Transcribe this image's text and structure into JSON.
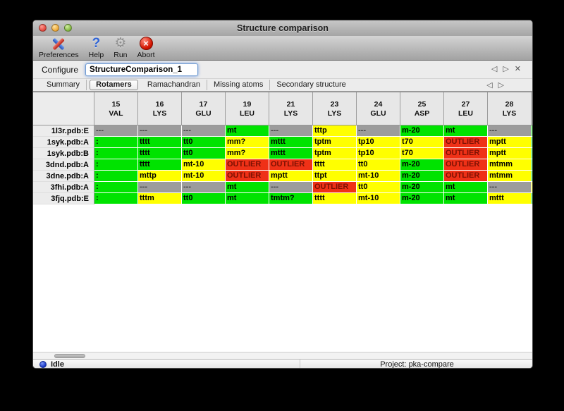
{
  "window": {
    "title": "Structure comparison"
  },
  "toolbar": {
    "items": [
      {
        "label": "Preferences",
        "icon": "tools-icon"
      },
      {
        "label": "Help",
        "icon": "question-icon",
        "glyph": "?"
      },
      {
        "label": "Run",
        "icon": "gear-icon",
        "glyph": "⚙"
      },
      {
        "label": "Abort",
        "icon": "abort-icon",
        "glyph": "×"
      }
    ]
  },
  "configure": {
    "label": "Configure",
    "value": "StructureComparison_1",
    "nav": {
      "prev": "◁",
      "next": "▷",
      "close": "✕"
    }
  },
  "tabs": {
    "items": [
      "Summary",
      "Rotamers",
      "Ramachandran",
      "Missing atoms",
      "Secondary structure"
    ],
    "selected": "Rotamers",
    "nav": {
      "prev": "◁",
      "next": "▷"
    }
  },
  "table": {
    "columns": [
      {
        "num": "15",
        "res": "VAL"
      },
      {
        "num": "16",
        "res": "LYS"
      },
      {
        "num": "17",
        "res": "GLU"
      },
      {
        "num": "19",
        "res": "LEU"
      },
      {
        "num": "21",
        "res": "LYS"
      },
      {
        "num": "23",
        "res": "LYS"
      },
      {
        "num": "24",
        "res": "GLU"
      },
      {
        "num": "25",
        "res": "ASP"
      },
      {
        "num": "27",
        "res": "LEU"
      },
      {
        "num": "28",
        "res": "LYS"
      }
    ],
    "colors": {
      "green": "#00e300",
      "yellow": "#ffff00",
      "red": "#ef3117",
      "gray": "#9c9c9c"
    },
    "text_colors": {
      "green": "#000000",
      "yellow": "#000000",
      "red": "#7c1103",
      "gray": "#3f3f3f"
    },
    "rows": [
      {
        "label": "1l3r.pdb:E",
        "edge": "green",
        "cells": [
          {
            "t": "---",
            "c": "gray"
          },
          {
            "t": "---",
            "c": "gray"
          },
          {
            "t": "---",
            "c": "gray"
          },
          {
            "t": "mt",
            "c": "green"
          },
          {
            "t": "---",
            "c": "gray"
          },
          {
            "t": "tttp",
            "c": "yellow"
          },
          {
            "t": "---",
            "c": "gray"
          },
          {
            "t": "m-20",
            "c": "green"
          },
          {
            "t": "mt",
            "c": "green"
          },
          {
            "t": "---",
            "c": "gray"
          }
        ]
      },
      {
        "label": "1syk.pdb:A",
        "edge": "green",
        "cells": [
          {
            "t": ":",
            "c": "green"
          },
          {
            "t": "tttt",
            "c": "green"
          },
          {
            "t": "tt0",
            "c": "green"
          },
          {
            "t": "mm?",
            "c": "yellow"
          },
          {
            "t": "mttt",
            "c": "green"
          },
          {
            "t": "tptm",
            "c": "yellow"
          },
          {
            "t": "tp10",
            "c": "yellow"
          },
          {
            "t": "t70",
            "c": "yellow"
          },
          {
            "t": "OUTLIER",
            "c": "red"
          },
          {
            "t": "mptt",
            "c": "yellow"
          }
        ]
      },
      {
        "label": "1syk.pdb:B",
        "edge": "green",
        "cells": [
          {
            "t": ":",
            "c": "green"
          },
          {
            "t": "tttt",
            "c": "green"
          },
          {
            "t": "tt0",
            "c": "green"
          },
          {
            "t": "mm?",
            "c": "yellow"
          },
          {
            "t": "mttt",
            "c": "green"
          },
          {
            "t": "tptm",
            "c": "yellow"
          },
          {
            "t": "tp10",
            "c": "yellow"
          },
          {
            "t": "t70",
            "c": "yellow"
          },
          {
            "t": "OUTLIER",
            "c": "red"
          },
          {
            "t": "mptt",
            "c": "yellow"
          }
        ]
      },
      {
        "label": "3dnd.pdb:A",
        "edge": "green",
        "cells": [
          {
            "t": ":",
            "c": "green"
          },
          {
            "t": "tttt",
            "c": "green"
          },
          {
            "t": "mt-10",
            "c": "yellow"
          },
          {
            "t": "OUTLIER",
            "c": "red"
          },
          {
            "t": "OUTLIER",
            "c": "red"
          },
          {
            "t": "tttt",
            "c": "yellow"
          },
          {
            "t": "tt0",
            "c": "yellow"
          },
          {
            "t": "m-20",
            "c": "green"
          },
          {
            "t": "OUTLIER",
            "c": "red"
          },
          {
            "t": "mtmm",
            "c": "yellow"
          }
        ]
      },
      {
        "label": "3dne.pdb:A",
        "edge": "green",
        "cells": [
          {
            "t": ":",
            "c": "green"
          },
          {
            "t": "mttp",
            "c": "yellow"
          },
          {
            "t": "mt-10",
            "c": "yellow"
          },
          {
            "t": "OUTLIER",
            "c": "red"
          },
          {
            "t": "mptt",
            "c": "yellow"
          },
          {
            "t": "ttpt",
            "c": "yellow"
          },
          {
            "t": "mt-10",
            "c": "yellow"
          },
          {
            "t": "m-20",
            "c": "green"
          },
          {
            "t": "OUTLIER",
            "c": "red"
          },
          {
            "t": "mtmm",
            "c": "yellow"
          }
        ]
      },
      {
        "label": "3fhi.pdb:A",
        "edge": "yellow",
        "cells": [
          {
            "t": ":",
            "c": "green"
          },
          {
            "t": "---",
            "c": "gray"
          },
          {
            "t": "---",
            "c": "gray"
          },
          {
            "t": "mt",
            "c": "green"
          },
          {
            "t": "---",
            "c": "gray"
          },
          {
            "t": "OUTLIER",
            "c": "red"
          },
          {
            "t": "tt0",
            "c": "yellow"
          },
          {
            "t": "m-20",
            "c": "green"
          },
          {
            "t": "mt",
            "c": "green"
          },
          {
            "t": "---",
            "c": "gray"
          }
        ]
      },
      {
        "label": "3fjq.pdb:E",
        "edge": "green",
        "cells": [
          {
            "t": ":",
            "c": "green"
          },
          {
            "t": "tttm",
            "c": "yellow"
          },
          {
            "t": "tt0",
            "c": "green"
          },
          {
            "t": "mt",
            "c": "green"
          },
          {
            "t": "tmtm?",
            "c": "green"
          },
          {
            "t": "tttt",
            "c": "yellow"
          },
          {
            "t": "mt-10",
            "c": "yellow"
          },
          {
            "t": "m-20",
            "c": "green"
          },
          {
            "t": "mt",
            "c": "green"
          },
          {
            "t": "mttt",
            "c": "yellow"
          }
        ]
      }
    ]
  },
  "statusbar": {
    "left": "Idle",
    "right": "Project: pka-compare"
  }
}
